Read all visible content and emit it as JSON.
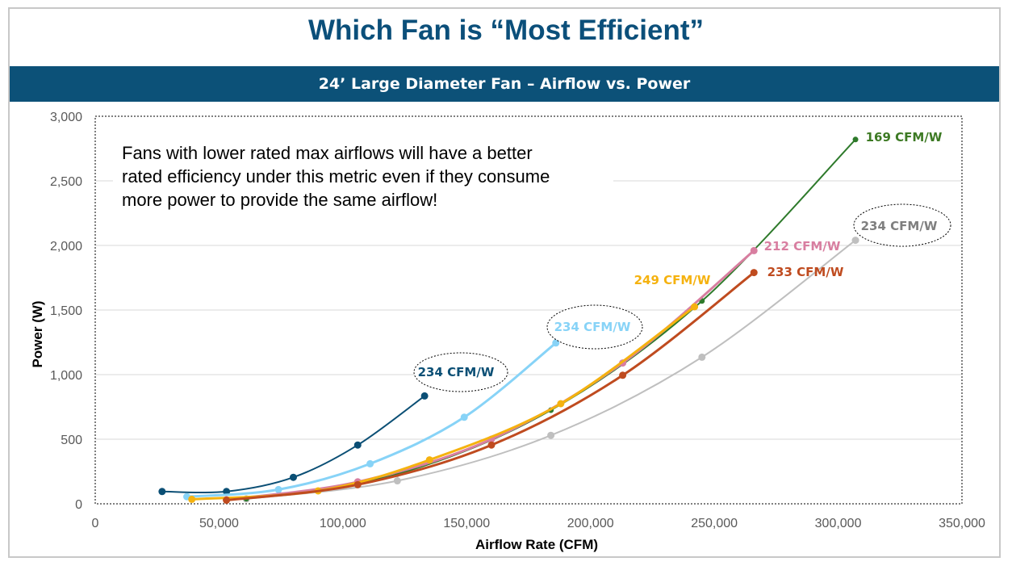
{
  "page": {
    "title": "Which Fan is “Most Efficient”",
    "subtitle": "24’ Large Diameter Fan – Airflow vs. Power"
  },
  "chart_data": {
    "type": "line",
    "xlabel": "Airflow Rate (CFM)",
    "ylabel": "Power (W)",
    "xlim": [
      0,
      350000
    ],
    "ylim": [
      0,
      3000
    ],
    "x_ticks": [
      "0",
      "50,000",
      "100,000",
      "150,000",
      "200,000",
      "250,000",
      "300,000",
      "350,000"
    ],
    "y_ticks": [
      "0",
      "500",
      "1,000",
      "1,500",
      "2,000",
      "2,500",
      "3,000"
    ],
    "x_tick_values": [
      0,
      50000,
      100000,
      150000,
      200000,
      250000,
      300000,
      350000
    ],
    "y_tick_values": [
      0,
      500,
      1000,
      1500,
      2000,
      2500,
      3000
    ],
    "grid": true,
    "annotation": [
      "Fans with lower rated max airflows will have a better",
      "rated efficiency under this metric even if they consume",
      "more power to provide the same airflow!"
    ],
    "series": [
      {
        "color": "#0b4f75",
        "label": "234 CFM/W",
        "circled": true,
        "x": [
          27000,
          53000,
          80000,
          106000,
          133000
        ],
        "y": [
          95,
          95,
          205,
          455,
          835
        ]
      },
      {
        "color": "#87d3f7",
        "label": "234 CFM/W",
        "circled": true,
        "x": [
          37000,
          74000,
          111000,
          149000,
          186000
        ],
        "y": [
          55,
          110,
          310,
          670,
          1245
        ]
      },
      {
        "color": "#bfbfbf",
        "label": "234 CFM/W",
        "circled": true,
        "x": [
          61000,
          122000,
          184000,
          245000,
          307000
        ],
        "y": [
          38,
          178,
          530,
          1135,
          2040
        ]
      },
      {
        "color": "#2e7a2b",
        "label": "169 CFM/W",
        "circled": false,
        "x": [
          61000,
          122000,
          184000,
          245000,
          307000
        ],
        "y": [
          40,
          230,
          725,
          1570,
          2820
        ]
      },
      {
        "color": "#d87ea0",
        "label": "212 CFM/W",
        "circled": false,
        "x": [
          53000,
          106000,
          160000,
          213000,
          266000
        ],
        "y": [
          32,
          170,
          500,
          1090,
          1960
        ]
      },
      {
        "color": "#f5b20f",
        "label": "249 CFM/W",
        "circled": false,
        "x": [
          39000,
          90000,
          135000,
          188000,
          242000
        ],
        "y": [
          35,
          100,
          340,
          775,
          1525
        ]
      },
      {
        "color": "#bf4b1f",
        "label": "233 CFM/W",
        "circled": false,
        "x": [
          53000,
          106000,
          160000,
          213000,
          266000
        ],
        "y": [
          28,
          148,
          455,
          995,
          1790
        ]
      }
    ]
  }
}
